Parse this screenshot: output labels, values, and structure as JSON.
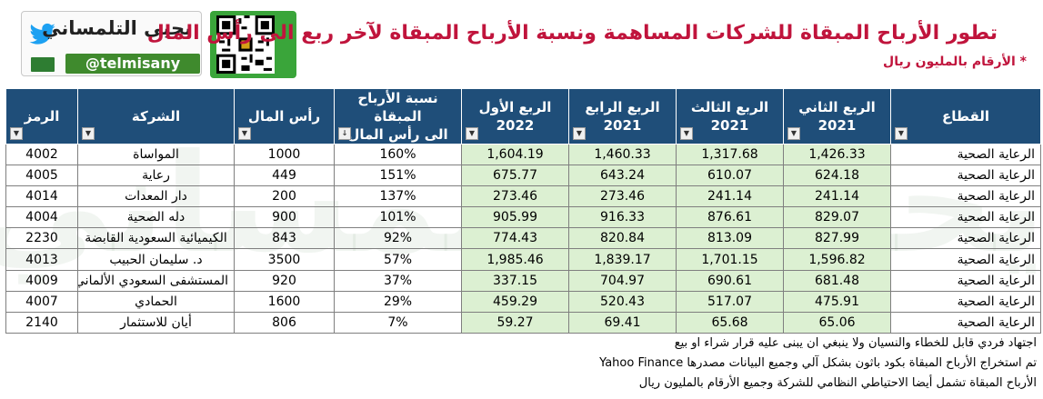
{
  "brand": {
    "name": "يحيى التلمساني",
    "handle": "@telmisany"
  },
  "title": "تطور الأرباح المبقاة للشركات المساهمة ونسبة الأرباح المبقاة لآخر ربع الى رأس المال",
  "subtitle": "* الأرقام بالمليون ريال",
  "table": {
    "headers": {
      "sector": "القطاع",
      "q2_label": "الربع الثاني",
      "q2_year": "2021",
      "q3_label": "الربع الثالث",
      "q3_year": "2021",
      "q4_label": "الربع الرابع",
      "q4_year": "2021",
      "q1_label": "الربع الأول",
      "q1_year": "2022",
      "ratio_l1": "نسبة الأرباح المبقاة",
      "ratio_l2": "الى رأس المال",
      "capital": "رأس المال",
      "company": "الشركة",
      "code": "الرمز"
    },
    "rows": [
      {
        "sector": "الرعاية الصحية",
        "q2": "1,426.33",
        "q3": "1,317.68",
        "q4": "1,460.33",
        "q1": "1,604.19",
        "ratio": "160%",
        "capital": "1000",
        "company": "المواساة",
        "code": "4002"
      },
      {
        "sector": "الرعاية الصحية",
        "q2": "624.18",
        "q3": "610.07",
        "q4": "643.24",
        "q1": "675.77",
        "ratio": "151%",
        "capital": "449",
        "company": "رعاية",
        "code": "4005"
      },
      {
        "sector": "الرعاية الصحية",
        "q2": "241.14",
        "q3": "241.14",
        "q4": "273.46",
        "q1": "273.46",
        "ratio": "137%",
        "capital": "200",
        "company": "دار المعدات",
        "code": "4014"
      },
      {
        "sector": "الرعاية الصحية",
        "q2": "829.07",
        "q3": "876.61",
        "q4": "916.33",
        "q1": "905.99",
        "ratio": "101%",
        "capital": "900",
        "company": "دله الصحية",
        "code": "4004"
      },
      {
        "sector": "الرعاية الصحية",
        "q2": "827.99",
        "q3": "813.09",
        "q4": "820.84",
        "q1": "774.43",
        "ratio": "92%",
        "capital": "843",
        "company": "الكيميائية السعودية القابضة",
        "code": "2230"
      },
      {
        "sector": "الرعاية الصحية",
        "q2": "1,596.82",
        "q3": "1,701.15",
        "q4": "1,839.17",
        "q1": "1,985.46",
        "ratio": "57%",
        "capital": "3500",
        "company": "د. سليمان الحبيب",
        "code": "4013"
      },
      {
        "sector": "الرعاية الصحية",
        "q2": "681.48",
        "q3": "690.61",
        "q4": "704.97",
        "q1": "337.15",
        "ratio": "37%",
        "capital": "920",
        "company": "المستشفى السعودي الألماني",
        "code": "4009"
      },
      {
        "sector": "الرعاية الصحية",
        "q2": "475.91",
        "q3": "517.07",
        "q4": "520.43",
        "q1": "459.29",
        "ratio": "29%",
        "capital": "1600",
        "company": "الحمادي",
        "code": "4007"
      },
      {
        "sector": "الرعاية الصحية",
        "q2": "65.06",
        "q3": "65.68",
        "q4": "69.41",
        "q1": "59.27",
        "ratio": "7%",
        "capital": "806",
        "company": "أيان للاستثمار",
        "code": "2140"
      }
    ]
  },
  "notes": [
    "اجتهاد فردي قابل للخطاء والنسيان ولا ينبغي ان يبنى عليه قرار شراء او بيع",
    "تم استخراج الأرباح المبقاة بكود باثون بشكل آلي وجميع البيانات مصدرها Yahoo Finance",
    "الأرباح المبقاة تشمل أيضا الاحتياطي النظامي للشركة وجميع الأرقام بالمليون ريال"
  ],
  "colors": {
    "header_bg": "#1f4e79",
    "title": "#c0143c",
    "green_cells": "#dcf0d2",
    "brand_green": "#3f8a2d"
  }
}
